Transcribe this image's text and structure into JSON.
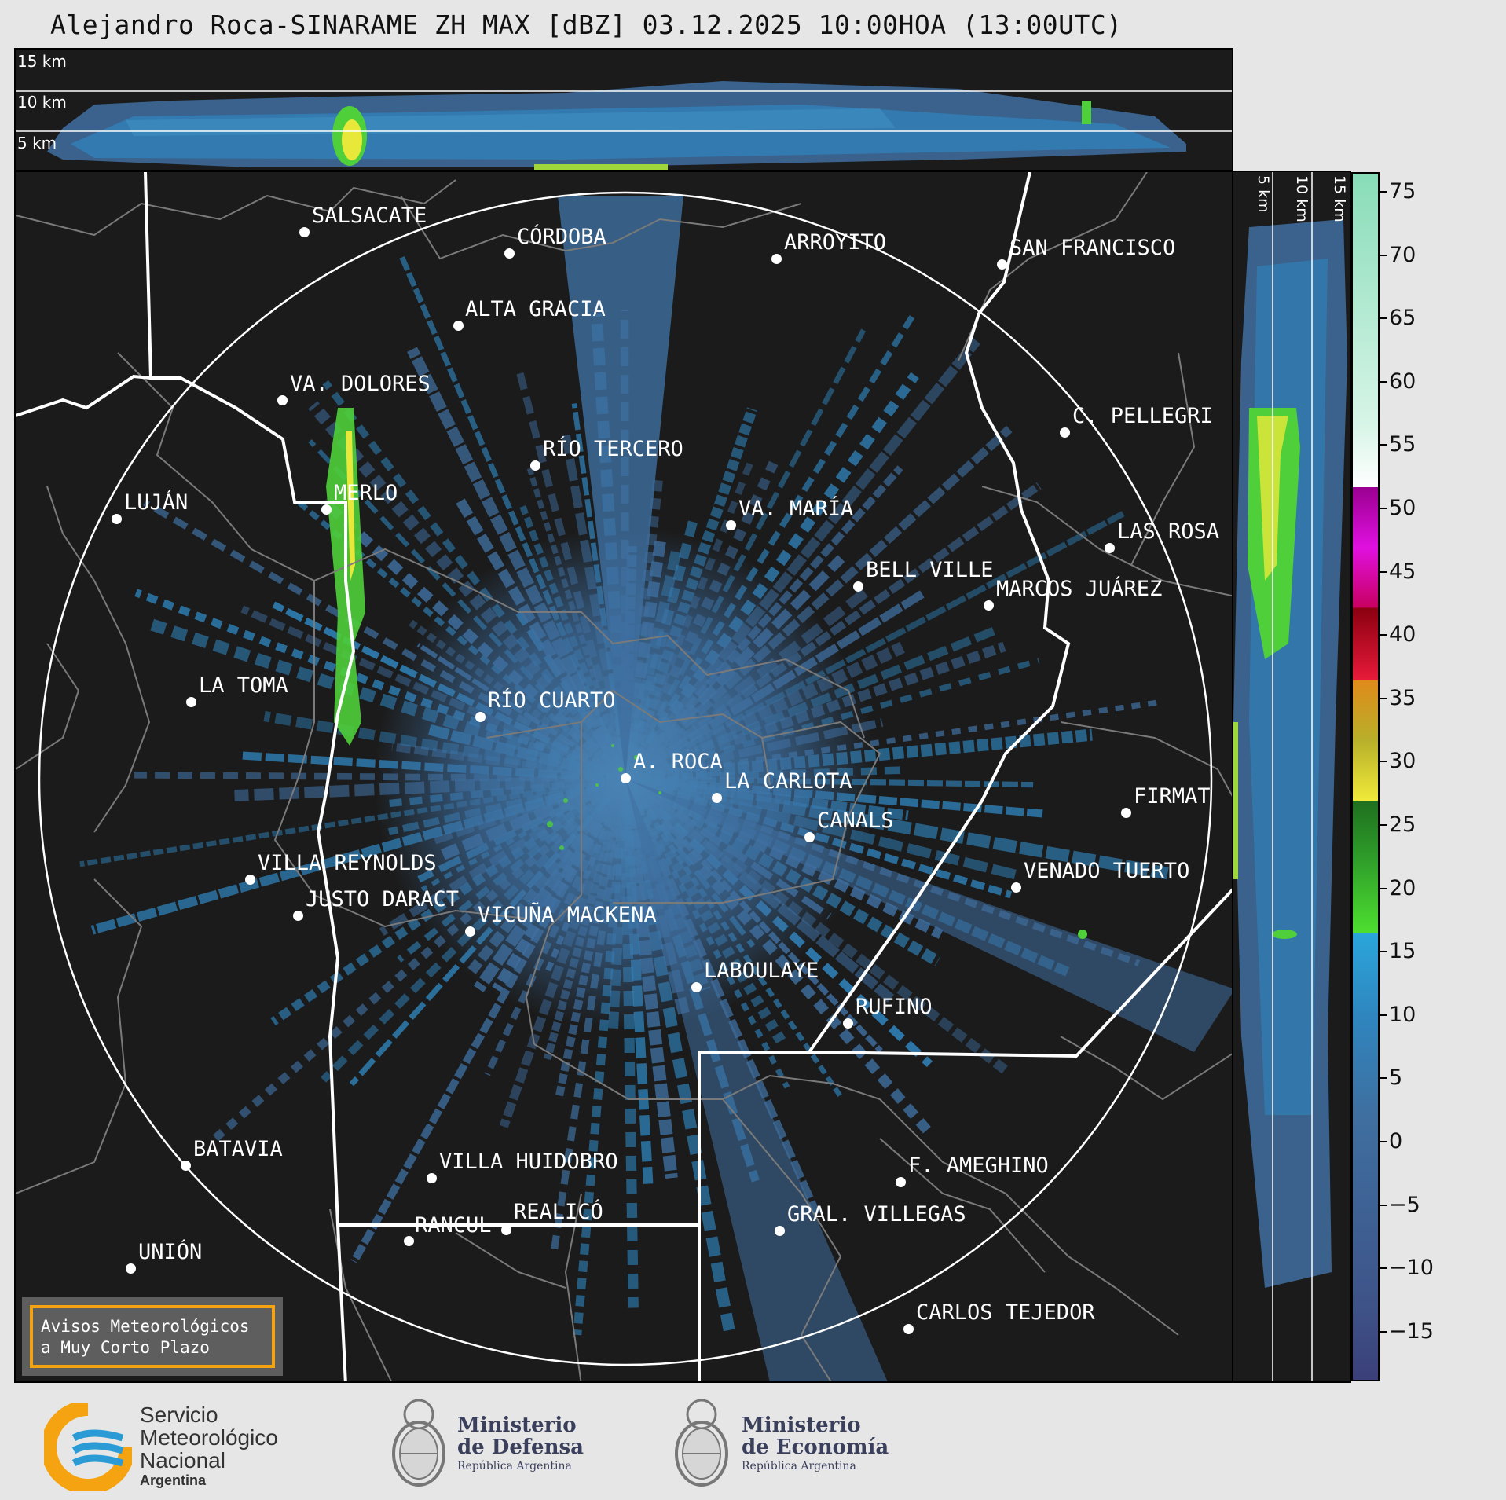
{
  "title": "Alejandro Roca-SINARAME ZH MAX [dBZ] 03.12.2025 10:00HOA (13:00UTC)",
  "top_panel": {
    "labels": [
      "15 km",
      "10 km",
      "5 km"
    ]
  },
  "side_panel": {
    "labels": [
      "5 km",
      "10 km",
      "15 km"
    ]
  },
  "cities": [
    {
      "name": "SALSACATE"
    },
    {
      "name": "CÓRDOBA"
    },
    {
      "name": "ARROYITO"
    },
    {
      "name": "SAN FRANCISCO"
    },
    {
      "name": "ALTA GRACIA"
    },
    {
      "name": "VA. DOLORES"
    },
    {
      "name": "C. PELLEGRI"
    },
    {
      "name": "RÍO TERCERO"
    },
    {
      "name": "LUJÁN"
    },
    {
      "name": "MERLO"
    },
    {
      "name": "VA. MARÍA"
    },
    {
      "name": "LAS ROSA"
    },
    {
      "name": "BELL VILLE"
    },
    {
      "name": "MARCOS JUÁREZ"
    },
    {
      "name": "LA TOMA"
    },
    {
      "name": "RÍO CUARTO"
    },
    {
      "name": "A. ROCA"
    },
    {
      "name": "LA CARLOTA"
    },
    {
      "name": "FIRMAT"
    },
    {
      "name": "CANALS"
    },
    {
      "name": "VILLA REYNOLDS"
    },
    {
      "name": "VENADO TUERTO"
    },
    {
      "name": "JUSTO DARACT"
    },
    {
      "name": "VICUÑA MACKENA"
    },
    {
      "name": "LABOULAYE"
    },
    {
      "name": "RUFINO"
    },
    {
      "name": "BATAVIA"
    },
    {
      "name": "VILLA HUIDOBRO"
    },
    {
      "name": "F. AMEGHINO"
    },
    {
      "name": "REALICÓ"
    },
    {
      "name": "RANCUL"
    },
    {
      "name": "GRAL. VILLEGAS"
    },
    {
      "name": "UNIÓN"
    },
    {
      "name": "CARLOS TEJEDOR"
    }
  ],
  "warning_box": {
    "line1": "Avisos Meteorológicos",
    "line2": "a Muy Corto Plazo"
  },
  "colorbar": {
    "unit": "dBZ",
    "ticks": [
      "75",
      "70",
      "65",
      "60",
      "55",
      "50",
      "45",
      "40",
      "35",
      "30",
      "25",
      "20",
      "15",
      "10",
      "5",
      "0",
      "−5",
      "−10",
      "−15"
    ]
  },
  "footer": {
    "smn": {
      "line1": "Servicio",
      "line2": "Meteorológico",
      "line3": "Nacional",
      "line4": "Argentina"
    },
    "defensa": {
      "line1": "Ministerio",
      "line2": "de Defensa",
      "line3": "República Argentina"
    },
    "economia": {
      "line1": "Ministerio",
      "line2": "de Economía",
      "line3": "República Argentina"
    }
  },
  "colors": {
    "background": "#1b1b1b",
    "echo_base": "#3f6fa0",
    "echo_light": "#2a8fc6",
    "echo_green": "#4fcf3a",
    "echo_yellow": "#e8e83a",
    "border_white": "#ffffff",
    "border_gray": "#7a7a7a",
    "warning_orange": "#f5a310"
  }
}
